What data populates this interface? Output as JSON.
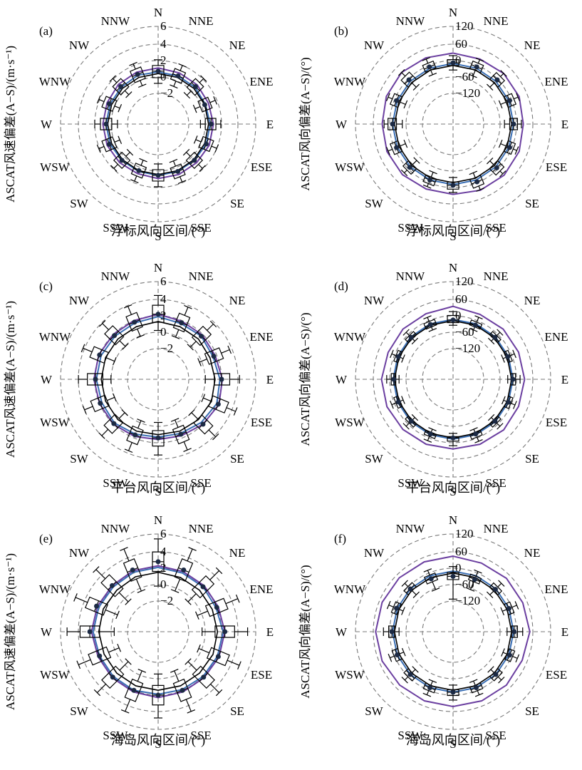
{
  "directions": [
    "N",
    "NNE",
    "NE",
    "ENE",
    "E",
    "ESE",
    "SE",
    "SSE",
    "S",
    "SSW",
    "SW",
    "WSW",
    "W",
    "WNW",
    "NW",
    "NNW"
  ],
  "colors": {
    "median_line": "#000000",
    "mean_line": "#3a6fb5",
    "upper_line": "#6b3fa0",
    "grid": "#7a7a7a"
  },
  "chart_data": [
    {
      "panel": "(a)",
      "type": "polar-boxplot",
      "ylabel": "ASCAT风速偏差(A−S)/(m·s⁻¹)",
      "xlabel": "浮标风向区间/(°)",
      "rlim": [
        -6,
        6
      ],
      "ring_ticks": [
        "−2",
        "0",
        "2",
        "4",
        "6"
      ],
      "boxes": {
        "median": [
          0.5,
          0.4,
          0.5,
          0.2,
          0.5,
          0.4,
          0.3,
          0.3,
          0.3,
          0.2,
          0.3,
          0.5,
          0.4,
          0.5,
          0.5,
          0.6
        ],
        "q1": [
          -0.3,
          -0.3,
          -0.3,
          -0.4,
          -0.2,
          -0.3,
          -0.4,
          -0.4,
          -0.4,
          -0.5,
          -0.4,
          -0.2,
          -0.3,
          -0.2,
          -0.2,
          -0.2
        ],
        "q3": [
          1.2,
          1.1,
          1.2,
          0.9,
          1.1,
          1.1,
          1.0,
          1.0,
          1.0,
          0.9,
          1.0,
          1.2,
          1.1,
          1.2,
          1.2,
          1.3
        ],
        "whisker_low": [
          -1.0,
          -1.0,
          -1.0,
          -1.1,
          -0.8,
          -1.0,
          -1.1,
          -1.1,
          -1.1,
          -1.2,
          -1.1,
          -0.9,
          -1.0,
          -0.9,
          -0.9,
          -0.9
        ],
        "whisker_high": [
          1.9,
          1.8,
          1.9,
          1.6,
          1.7,
          1.8,
          1.7,
          1.7,
          1.7,
          1.6,
          1.7,
          1.9,
          1.8,
          1.9,
          1.9,
          2.0
        ]
      },
      "lines": {
        "median": [
          0.2,
          0.2,
          0.2,
          0.2,
          0.2,
          0.2,
          0.2,
          0.2,
          0.2,
          0.2,
          0.2,
          0.2,
          0.2,
          0.2,
          0.2,
          0.2
        ],
        "mean": [
          0.4,
          0.4,
          0.4,
          0.3,
          0.4,
          0.4,
          0.3,
          0.3,
          0.3,
          0.3,
          0.3,
          0.4,
          0.4,
          0.4,
          0.4,
          0.5
        ],
        "upper": [
          0.9,
          0.8,
          0.8,
          0.7,
          0.8,
          0.8,
          0.7,
          0.7,
          0.7,
          0.6,
          0.7,
          0.8,
          0.8,
          0.8,
          0.9,
          0.9
        ]
      }
    },
    {
      "panel": "(b)",
      "type": "polar-boxplot",
      "ylabel": "ASCAT风向偏差(A−S)/(°)",
      "xlabel": "浮标风向区间/(°)",
      "rlim": [
        -180,
        120
      ],
      "ring_ticks": [
        "−120",
        "−60",
        "0",
        "60",
        "120"
      ],
      "boxes": {
        "median": [
          8,
          10,
          12,
          8,
          6,
          8,
          10,
          12,
          8,
          6,
          8,
          8,
          6,
          8,
          12,
          10
        ],
        "q1": [
          0,
          -2,
          -2,
          -4,
          -6,
          -4,
          -4,
          -2,
          -2,
          -4,
          -4,
          -4,
          -6,
          -4,
          -2,
          0
        ],
        "q3": [
          18,
          22,
          26,
          22,
          18,
          20,
          24,
          26,
          20,
          18,
          20,
          22,
          20,
          22,
          28,
          22
        ],
        "whisker_low": [
          -14,
          -20,
          -20,
          -22,
          -22,
          -22,
          -20,
          -18,
          -16,
          -20,
          -22,
          -22,
          -24,
          -22,
          -20,
          -16
        ],
        "whisker_high": [
          30,
          34,
          40,
          36,
          30,
          32,
          36,
          38,
          30,
          28,
          32,
          36,
          32,
          36,
          44,
          36
        ]
      },
      "lines": {
        "median": [
          0,
          0,
          0,
          0,
          0,
          0,
          0,
          0,
          0,
          0,
          0,
          0,
          0,
          0,
          0,
          0
        ],
        "mean": [
          6,
          6,
          6,
          6,
          6,
          6,
          6,
          6,
          6,
          6,
          6,
          6,
          6,
          6,
          6,
          6
        ],
        "upper": [
          38,
          36,
          40,
          40,
          36,
          40,
          42,
          40,
          36,
          36,
          40,
          40,
          38,
          42,
          44,
          40
        ]
      }
    },
    {
      "panel": "(c)",
      "type": "polar-boxplot",
      "ylabel": "ASCAT风速偏差(A−S)/(m·s⁻¹)",
      "xlabel": "平台风向区间/(°)",
      "rlim": [
        -6,
        6
      ],
      "ring_ticks": [
        "−2",
        "0",
        "2",
        "4",
        "6"
      ],
      "boxes": {
        "median": [
          2.0,
          1.5,
          1.5,
          1.4,
          1.8,
          2.0,
          1.8,
          1.3,
          1.2,
          1.4,
          1.7,
          1.7,
          1.7,
          1.8,
          1.6,
          1.6
        ],
        "q1": [
          1.0,
          0.6,
          0.6,
          0.5,
          0.9,
          1.0,
          0.9,
          0.4,
          0.3,
          0.5,
          0.8,
          0.8,
          0.8,
          0.9,
          0.7,
          0.7
        ],
        "q3": [
          3.1,
          2.5,
          2.5,
          2.4,
          2.8,
          3.1,
          2.8,
          2.3,
          2.2,
          2.4,
          2.7,
          2.7,
          2.7,
          2.8,
          2.6,
          2.6
        ],
        "whisker_low": [
          0.0,
          -0.4,
          -0.4,
          -0.5,
          -0.2,
          0.0,
          -0.2,
          -0.6,
          -0.7,
          -0.5,
          -0.2,
          -0.2,
          -0.2,
          -0.2,
          -0.3,
          -0.3
        ],
        "whisker_high": [
          4.3,
          3.6,
          3.6,
          3.5,
          4.0,
          4.3,
          4.0,
          3.4,
          3.3,
          3.5,
          3.8,
          3.8,
          3.8,
          4.0,
          3.7,
          3.7
        ]
      },
      "lines": {
        "median": [
          1.1,
          1.0,
          1.0,
          0.9,
          1.0,
          1.1,
          1.0,
          0.9,
          0.8,
          0.9,
          1.0,
          1.0,
          1.0,
          1.0,
          1.0,
          1.0
        ],
        "mean": [
          1.7,
          1.4,
          1.5,
          1.3,
          1.6,
          1.8,
          1.5,
          1.2,
          1.1,
          1.3,
          1.6,
          1.5,
          1.6,
          1.6,
          1.5,
          1.5
        ],
        "upper": [
          2.0,
          1.7,
          1.7,
          1.6,
          1.9,
          2.1,
          1.8,
          1.5,
          1.4,
          1.6,
          1.8,
          1.8,
          1.9,
          1.9,
          1.8,
          1.8
        ]
      }
    },
    {
      "panel": "(d)",
      "type": "polar-boxplot",
      "ylabel": "ASCAT风向偏差(A−S)/(°)",
      "xlabel": "平台风向区间/(°)",
      "rlim": [
        -180,
        120
      ],
      "ring_ticks": [
        "−120",
        "−60",
        "0",
        "60",
        "120"
      ],
      "boxes": {
        "median": [
          2,
          0,
          2,
          2,
          4,
          4,
          2,
          2,
          0,
          2,
          2,
          2,
          2,
          2,
          2,
          2
        ],
        "q1": [
          -6,
          -6,
          -4,
          -4,
          -2,
          -2,
          -4,
          -4,
          -4,
          -4,
          -4,
          -4,
          -4,
          -4,
          -4,
          -6
        ],
        "q3": [
          16,
          10,
          10,
          10,
          12,
          12,
          10,
          12,
          10,
          10,
          10,
          10,
          10,
          10,
          10,
          12
        ],
        "whisker_low": [
          -14,
          -16,
          -14,
          -14,
          -12,
          -12,
          -14,
          -14,
          -14,
          -14,
          -14,
          -14,
          -14,
          -14,
          -14,
          -16
        ],
        "whisker_high": [
          28,
          26,
          24,
          24,
          26,
          26,
          24,
          26,
          24,
          24,
          24,
          24,
          24,
          24,
          24,
          26
        ]
      },
      "lines": {
        "median": [
          0,
          0,
          0,
          0,
          0,
          0,
          0,
          0,
          0,
          0,
          0,
          0,
          0,
          0,
          0,
          0
        ],
        "mean": [
          4,
          4,
          4,
          4,
          4,
          4,
          4,
          4,
          4,
          4,
          4,
          4,
          4,
          4,
          4,
          4
        ],
        "upper": [
          44,
          36,
          38,
          38,
          40,
          38,
          40,
          36,
          34,
          36,
          38,
          40,
          40,
          36,
          38,
          38
        ]
      }
    },
    {
      "panel": "(e)",
      "type": "polar-boxplot",
      "ylabel": "ASCAT风速偏差(A−S)/(m·s⁻¹)",
      "xlabel": "海岛风向区间/(°)",
      "rlim": [
        -6,
        6
      ],
      "ring_ticks": [
        "−2",
        "0",
        "2",
        "4",
        "6"
      ],
      "boxes": {
        "median": [
          2.6,
          2.2,
          1.8,
          1.8,
          2.2,
          2.0,
          1.9,
          1.8,
          1.8,
          1.8,
          1.9,
          1.8,
          2.4,
          2.2,
          2.0,
          2.2
        ],
        "q1": [
          1.4,
          1.0,
          0.6,
          0.6,
          1.0,
          0.8,
          0.7,
          0.6,
          0.6,
          0.6,
          0.7,
          0.6,
          1.2,
          1.0,
          0.8,
          1.0
        ],
        "q3": [
          3.8,
          3.4,
          3.0,
          3.0,
          3.4,
          3.2,
          3.1,
          3.0,
          3.0,
          3.0,
          3.1,
          3.0,
          3.6,
          3.4,
          3.2,
          3.4
        ],
        "whisker_low": [
          -0.4,
          -0.6,
          -0.8,
          -0.8,
          -0.6,
          -0.6,
          -0.8,
          -0.8,
          -0.8,
          -0.8,
          -0.8,
          -0.8,
          -0.6,
          -0.6,
          -0.8,
          -0.6
        ],
        "whisker_high": [
          5.4,
          5.0,
          4.6,
          4.6,
          5.0,
          4.8,
          4.6,
          4.6,
          4.6,
          4.6,
          4.6,
          4.6,
          5.2,
          5.0,
          4.8,
          5.0
        ]
      },
      "lines": {
        "median": [
          1.3,
          1.2,
          1.2,
          1.2,
          1.3,
          1.3,
          1.2,
          1.2,
          1.2,
          1.2,
          1.2,
          1.2,
          1.3,
          1.3,
          1.2,
          1.3
        ],
        "mean": [
          1.9,
          1.8,
          1.8,
          1.7,
          2.0,
          1.9,
          1.8,
          1.7,
          1.7,
          1.8,
          1.8,
          1.8,
          2.0,
          1.9,
          1.8,
          1.9
        ],
        "upper": [
          2.1,
          2.0,
          2.0,
          2.0,
          2.2,
          2.1,
          2.0,
          2.0,
          2.1,
          2.0,
          2.0,
          2.0,
          2.2,
          2.1,
          2.0,
          2.1
        ]
      }
    },
    {
      "panel": "(f)",
      "type": "polar-boxplot",
      "ylabel": "ASCAT风向偏差(A−S)/(°)",
      "xlabel": "海岛风向区间/(°)",
      "rlim": [
        -180,
        120
      ],
      "ring_ticks": [
        "−120",
        "−60",
        "0",
        "60",
        "120"
      ],
      "boxes": {
        "median": [
          -10,
          -6,
          4,
          6,
          8,
          8,
          6,
          6,
          6,
          6,
          6,
          6,
          8,
          8,
          6,
          -4
        ],
        "q1": [
          -20,
          -14,
          -4,
          -2,
          0,
          0,
          -2,
          -2,
          -2,
          -2,
          -2,
          -2,
          0,
          0,
          -2,
          -14
        ],
        "q3": [
          2,
          4,
          14,
          16,
          18,
          18,
          16,
          16,
          16,
          16,
          16,
          16,
          18,
          18,
          16,
          8
        ],
        "whisker_low": [
          -80,
          -40,
          -20,
          -16,
          -14,
          -14,
          -16,
          -16,
          -16,
          -16,
          -16,
          -16,
          -14,
          -14,
          -20,
          -40
        ],
        "whisker_high": [
          20,
          20,
          30,
          32,
          34,
          34,
          30,
          30,
          30,
          30,
          30,
          30,
          34,
          34,
          30,
          24
        ]
      },
      "lines": {
        "median": [
          0,
          0,
          0,
          0,
          0,
          0,
          0,
          0,
          0,
          0,
          0,
          0,
          0,
          0,
          0,
          0
        ],
        "mean": [
          6,
          6,
          6,
          6,
          6,
          6,
          6,
          6,
          6,
          6,
          6,
          6,
          6,
          6,
          6,
          6
        ],
        "upper": [
          52,
          48,
          52,
          52,
          56,
          50,
          52,
          50,
          50,
          50,
          52,
          56,
          58,
          56,
          54,
          52
        ]
      }
    }
  ]
}
